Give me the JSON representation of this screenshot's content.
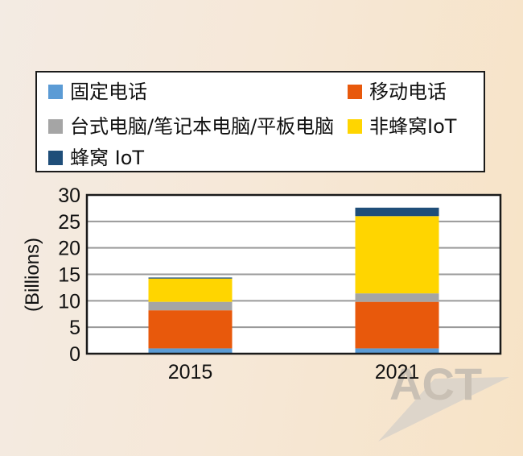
{
  "chart_data": {
    "type": "bar",
    "stacked": true,
    "categories": [
      "2015",
      "2021"
    ],
    "ylabel": "(Billions)",
    "ylim": [
      0,
      30
    ],
    "yticks": [
      0,
      5,
      10,
      15,
      20,
      25,
      30
    ],
    "grid": true,
    "legend_position": "top",
    "series": [
      {
        "name": "固定电话",
        "color": "#5b9bd5",
        "values": [
          1.0,
          1.0
        ]
      },
      {
        "name": "移动电话",
        "color": "#e8590c",
        "values": [
          7.2,
          8.8
        ]
      },
      {
        "name": "台式电脑/笔记本电脑/平板电脑",
        "color": "#a5a5a5",
        "values": [
          1.6,
          1.6
        ]
      },
      {
        "name": "非蜂窝IoT",
        "color": "#ffd500",
        "values": [
          4.4,
          14.6
        ]
      },
      {
        "name": "蜂窝 IoT",
        "color": "#1f4e79",
        "values": [
          0.2,
          1.6
        ]
      }
    ]
  },
  "watermark": "ACT"
}
